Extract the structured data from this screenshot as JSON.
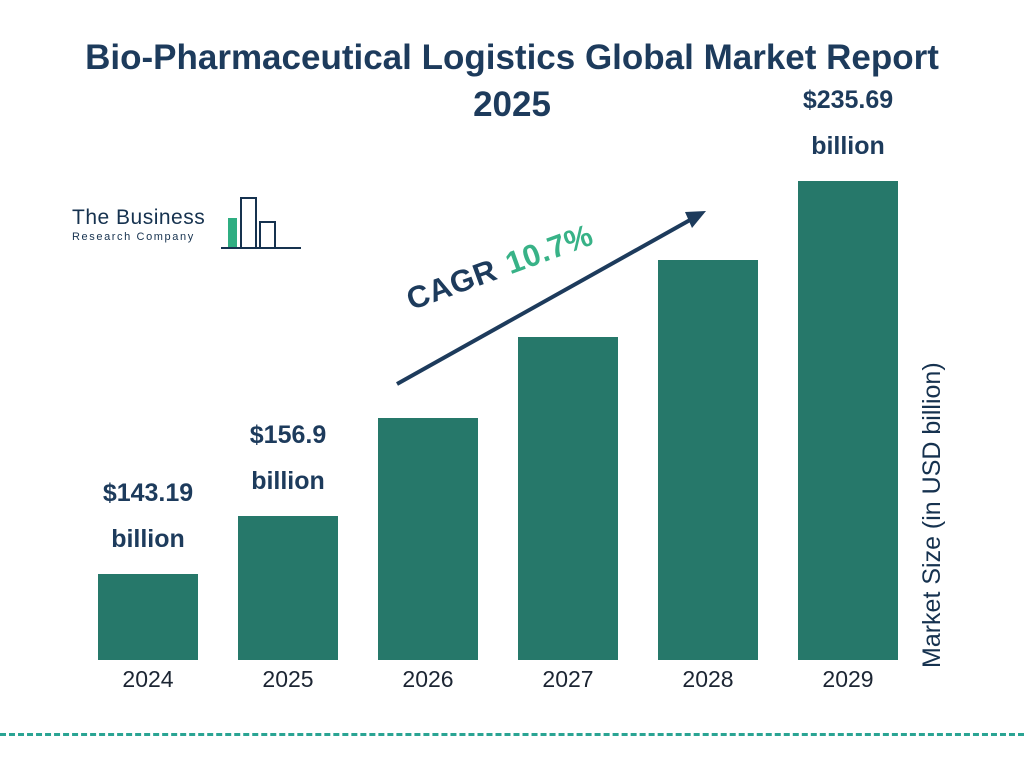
{
  "title": "Bio-Pharmaceutical Logistics Global Market Report 2025",
  "logo": {
    "line1": "The Business",
    "line2": "Research Company"
  },
  "cagr": {
    "prefix": "CAGR",
    "value": "10.7%"
  },
  "y_axis_label": "Market Size (in USD billion)",
  "chart_data": {
    "type": "bar",
    "title": "Bio-Pharmaceutical Logistics Global Market Report 2025",
    "categories": [
      "2024",
      "2025",
      "2026",
      "2027",
      "2028",
      "2029"
    ],
    "values": [
      143.19,
      156.9,
      180,
      199,
      217,
      235.69
    ],
    "value_labels": [
      [
        "$143.19",
        "billion"
      ],
      [
        "$156.9",
        "billion"
      ],
      null,
      null,
      null,
      [
        "$235.69",
        "billion"
      ]
    ],
    "cagr": "10.7%",
    "xlabel": "",
    "ylabel": "Market Size (in USD billion)",
    "legend": "none",
    "grid": false,
    "bar_color": "#26786a",
    "title_color": "#1d3b5c",
    "accent_green": "#38b287",
    "dash_color": "#2aa493"
  }
}
